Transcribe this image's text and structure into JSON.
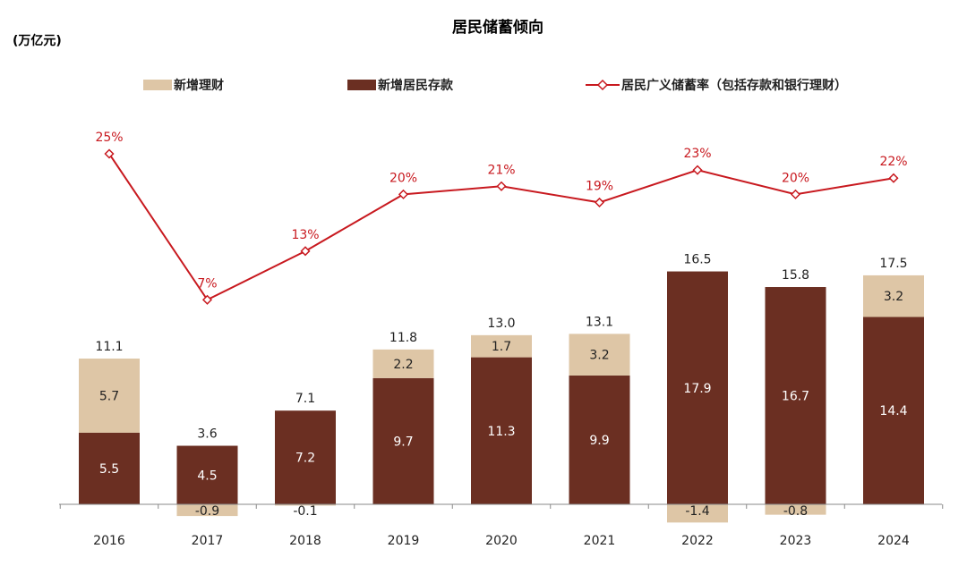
{
  "chart_data": {
    "type": "bar",
    "title": "居民储蓄倾向",
    "unit_label": "(万亿元)",
    "categories": [
      "2016",
      "2017",
      "2018",
      "2019",
      "2020",
      "2021",
      "2022",
      "2023",
      "2024"
    ],
    "series": [
      {
        "name": "新增居民存款",
        "type": "bar",
        "color": "#6B2F22",
        "values": [
          5.5,
          4.5,
          7.2,
          9.7,
          11.3,
          9.9,
          17.9,
          16.7,
          14.4
        ]
      },
      {
        "name": "新增理财",
        "type": "bar",
        "color": "#DEC6A6",
        "values": [
          5.7,
          -0.9,
          -0.1,
          2.2,
          1.7,
          3.2,
          -1.4,
          -0.8,
          3.2
        ]
      },
      {
        "name": "居民广义储蓄率（包括存款和银行理财）",
        "type": "line",
        "color": "#C8191F",
        "axis": "secondary",
        "values": [
          25,
          7,
          13,
          20,
          21,
          19,
          23,
          20,
          22
        ],
        "labels": [
          "25%",
          "7%",
          "13%",
          "20%",
          "21%",
          "19%",
          "23%",
          "20%",
          "22%"
        ]
      }
    ],
    "totals": [
      "11.1",
      "3.6",
      "7.1",
      "11.8",
      "13.0",
      "13.1",
      "16.5",
      "15.8",
      "17.5"
    ],
    "deposit_labels": [
      "5.5",
      "4.5",
      "7.2",
      "9.7",
      "11.3",
      "9.9",
      "17.9",
      "16.7",
      "14.4"
    ],
    "wealth_labels": [
      "5.7",
      "-0.9",
      "-0.1",
      "2.2",
      "1.7",
      "3.2",
      "-1.4",
      "-0.8",
      "3.2"
    ],
    "legend": [
      {
        "name": "新增理财",
        "marker": "box",
        "color": "#DEC6A6"
      },
      {
        "name": "新增居民存款",
        "marker": "box",
        "color": "#6B2F22"
      },
      {
        "name": "居民广义储蓄率（包括存款和银行理财）",
        "marker": "line-diamond",
        "color": "#C8191F"
      }
    ],
    "legend_position": "top",
    "grid": false
  }
}
